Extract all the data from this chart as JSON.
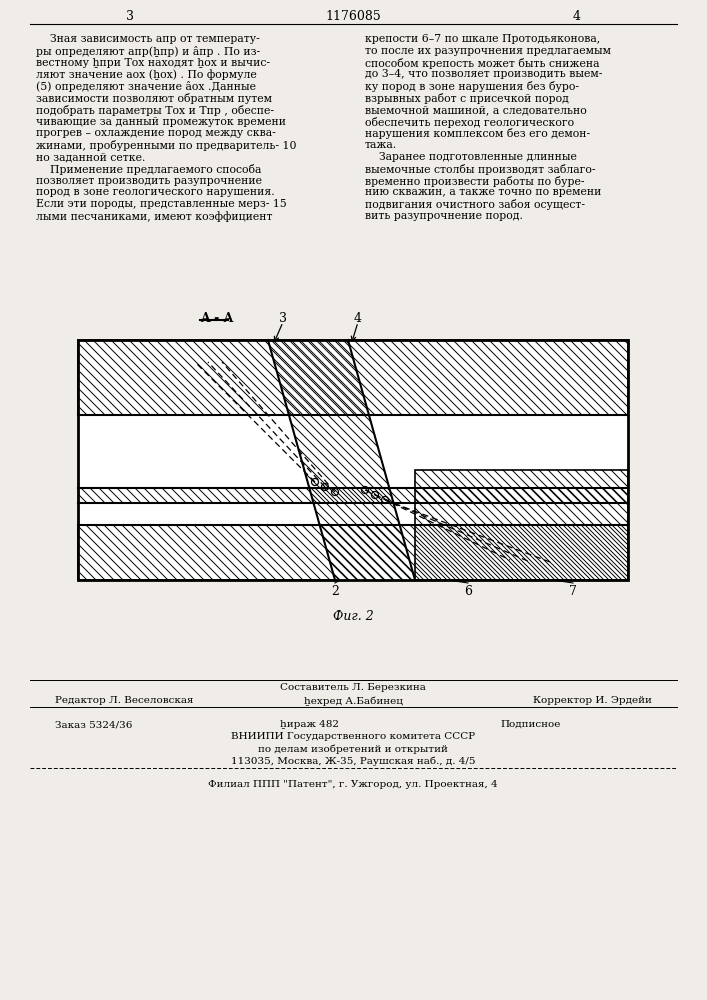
{
  "page_color": "#f0ede8",
  "title_text": "1176085",
  "page_num_left": "3",
  "page_num_right": "4",
  "col1_text": [
    "    Зная зависимость aпр от температу-",
    "ры определяют aпр(ẖпр) и âпр . По из-",
    "вестному ẖпри Tох находят ẖох и вычис-",
    "ляют значение aох (ẖох) . По формуле",
    "(5) определяют значение âох .Данные",
    "зависимости позволяют обратным путем",
    "подобрать параметры Tох и Tпр , обеспе-",
    "чивающие за данный промежуток времени",
    "прогрев – охлаждение пород между сква-",
    "жинами, пробуренными по предваритель- 10",
    "но заданной сетке.",
    "    Применение предлагаемого способа",
    "позволяет производить разупрочнение",
    "пород в зоне геологического нарушения.",
    "Если эти породы, представленные мерз- 15",
    "лыми песчаниками, имеют коэффициент"
  ],
  "col2_text": [
    "крепости 6–7 по шкале Протодьяконова,",
    "то после их разупрочнения предлагаемым",
    "способом крепость может быть снижена",
    "до 3–4, что позволяет производить выем-",
    "ку пород в зоне нарушения без буро-",
    "взрывных работ с присечкой пород",
    "выемочной машиной, а следовательно",
    "обеспечить переход геологического",
    "нарушения комплексом без его демон-",
    "тажа.",
    "    Заранее подготовленные длинные",
    "выемочные столбы производят заблаго-",
    "временно произвести работы по буре-",
    "нию скважин, а также точно по времени",
    "подвигания очистного забоя осущест-",
    "вить разупрочнение пород."
  ],
  "figure_label": "Фиг. 2",
  "section_label": "A - A",
  "label_3": "3",
  "label_4": "4",
  "label_2": "2",
  "label_6": "6",
  "label_7": "7",
  "footer_sestavitel": "Составитель Л. Березкина",
  "footer_redaktor": "Редактор Л. Веселовская",
  "footer_tehred": "ẖехред А.Бабинец",
  "footer_korrektor": "Корректор И. Эрдейи",
  "footer_zakaz": "Заказ 5324/36",
  "footer_tirazh": "ẖираж 482",
  "footer_podpisnoe": "Подписное",
  "footer_vniipи": "ВНИИПИ Государственного комитета СССР",
  "footer_po_delam": "по делам изобретений и открытий",
  "footer_address": "113035, Москва, Ж-35, Раушская наб., д. 4/5",
  "footer_filial": "Филиал ППП \"Патент\", г. Ужгород, ул. Проектная, 4"
}
